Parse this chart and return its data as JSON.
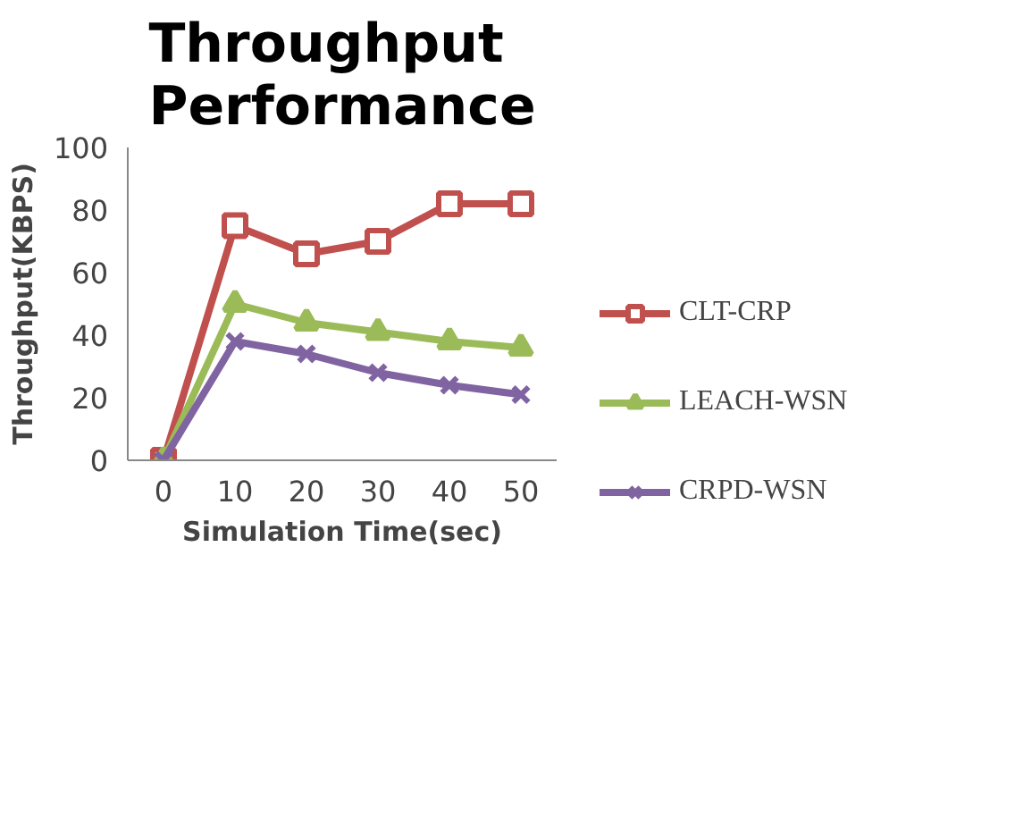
{
  "chart_data": {
    "type": "line",
    "title": "Throughput Performance",
    "xlabel": "Simulation Time(sec)",
    "ylabel": "Throughput(KBPS)",
    "categories": [
      "0",
      "10",
      "20",
      "30",
      "40",
      "50"
    ],
    "ylim": [
      0,
      100
    ],
    "yticks": [
      0,
      20,
      40,
      60,
      80,
      100
    ],
    "grid": false,
    "legend": "right",
    "line_style": "solid",
    "series": [
      {
        "name": "CLT-CRP",
        "color": "#c0504d",
        "marker": "square",
        "values": [
          0,
          75,
          66,
          70,
          82,
          82
        ]
      },
      {
        "name": "LEACH-WSN",
        "color": "#9bbb59",
        "marker": "triangle",
        "values": [
          0,
          50,
          44,
          41,
          38,
          36
        ]
      },
      {
        "name": "CRPD-WSN",
        "color": "#8064a2",
        "marker": "cross",
        "values": [
          0,
          38,
          34,
          28,
          24,
          21
        ]
      }
    ]
  }
}
